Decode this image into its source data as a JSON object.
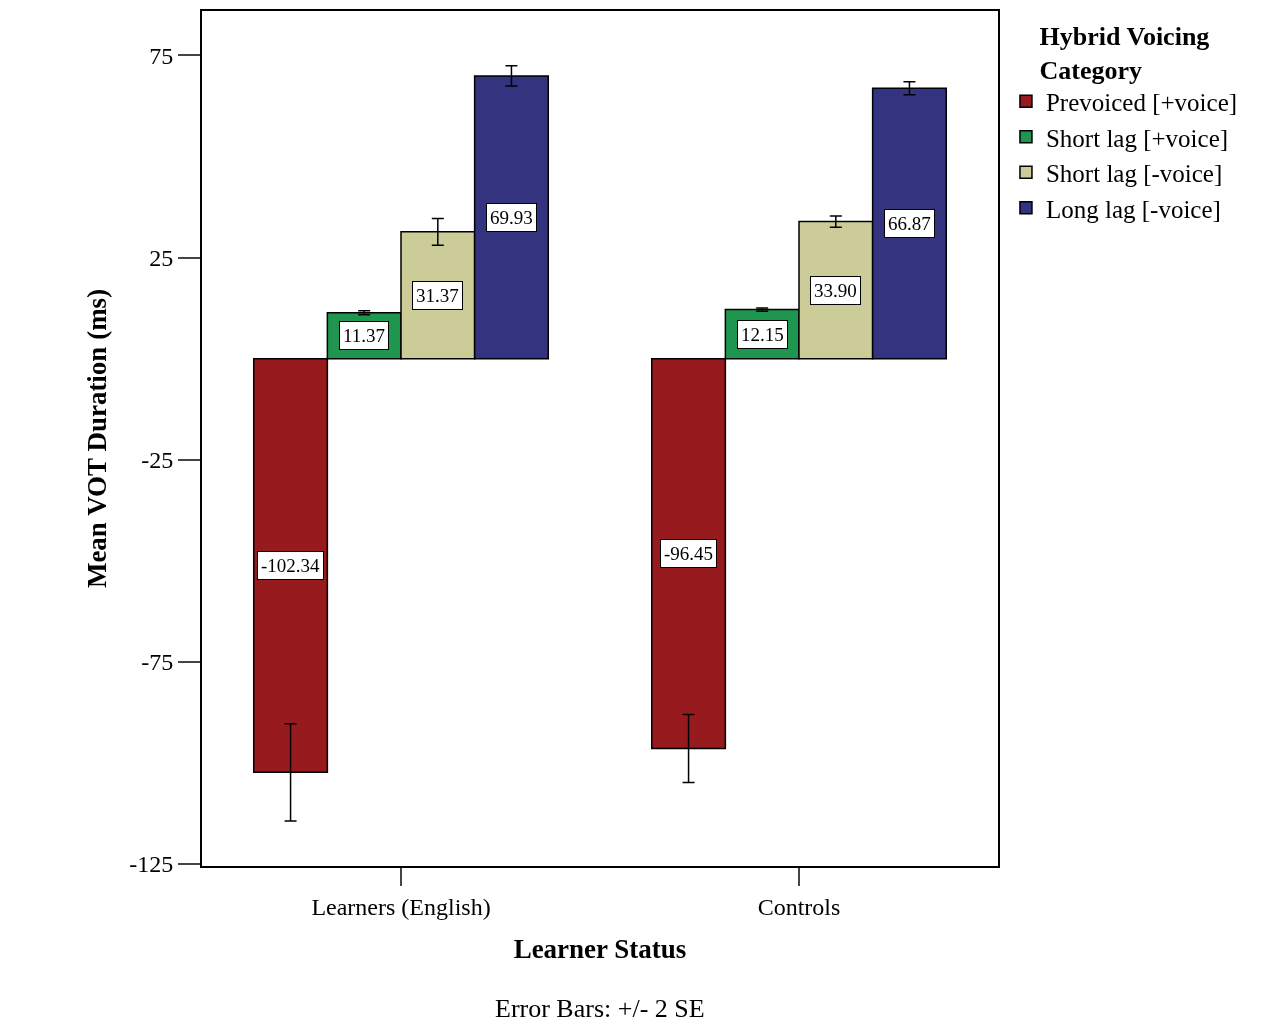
{
  "chart_data": {
    "type": "bar",
    "xlabel": "Learner Status",
    "ylabel": "Mean VOT Duration (ms)",
    "legend_title": "Hybrid Voicing Category",
    "categories": [
      "Learners (English)",
      "Controls"
    ],
    "series": [
      {
        "name": "Prevoiced [+voice]",
        "color": "#961a1e",
        "values": [
          -102.34,
          -96.45
        ],
        "value_labels": [
          "-102.34",
          "-96.45"
        ],
        "errors": [
          12,
          8.4
        ]
      },
      {
        "name": "Short lag [+voice]",
        "color": "#1e9650",
        "values": [
          11.37,
          12.15
        ],
        "value_labels": [
          "11.37",
          "12.15"
        ],
        "errors": [
          0.5,
          0.4
        ]
      },
      {
        "name": "Short lag [-voice]",
        "color": "#cccc98",
        "values": [
          31.37,
          33.9
        ],
        "value_labels": [
          "31.37",
          "33.90"
        ],
        "errors": [
          3.3,
          1.4
        ]
      },
      {
        "name": "Long lag [-voice]",
        "color": "#333380",
        "values": [
          69.93,
          66.87
        ],
        "value_labels": [
          "69.93",
          "66.87"
        ],
        "errors": [
          2.5,
          1.6
        ]
      }
    ],
    "ylim": [
      -125.5,
      86
    ],
    "yticks": [
      -125,
      -75,
      -25,
      25,
      75
    ],
    "grid": false,
    "legend": "top right",
    "annotations": [
      "Error Bars: +/- 2 SE"
    ]
  }
}
